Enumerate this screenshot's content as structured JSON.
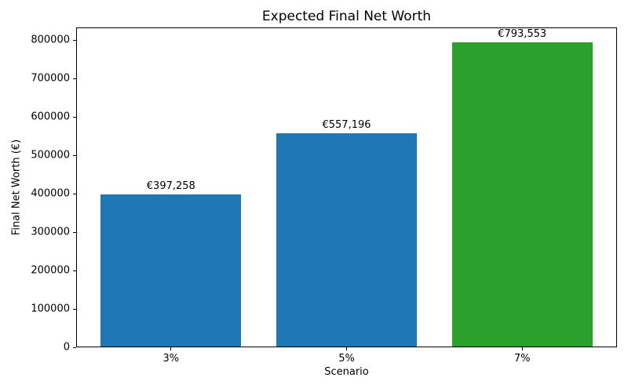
{
  "chart_data": {
    "type": "bar",
    "title": "Expected Final Net Worth",
    "xlabel": "Scenario",
    "ylabel": "Final Net Worth (€)",
    "categories": [
      "3%",
      "5%",
      "7%"
    ],
    "values": [
      397258,
      557196,
      793553
    ],
    "bar_labels": [
      "€397,258",
      "€557,196",
      "€793,553"
    ],
    "bar_colors": [
      "#1f77b4",
      "#1f77b4",
      "#2ca02c"
    ],
    "bar_width_units": 0.8,
    "xlim": [
      -0.54,
      2.54
    ],
    "ylim": [
      0,
      833231
    ],
    "yticks": [
      0,
      100000,
      200000,
      300000,
      400000,
      500000,
      600000,
      700000,
      800000
    ],
    "ytick_labels": [
      "0",
      "100000",
      "200000",
      "300000",
      "400000",
      "500000",
      "600000",
      "700000",
      "800000"
    ],
    "grid": false,
    "legend": "none",
    "spine_color": "#000000",
    "background_color": "#ffffff",
    "text_color": "#000000"
  }
}
